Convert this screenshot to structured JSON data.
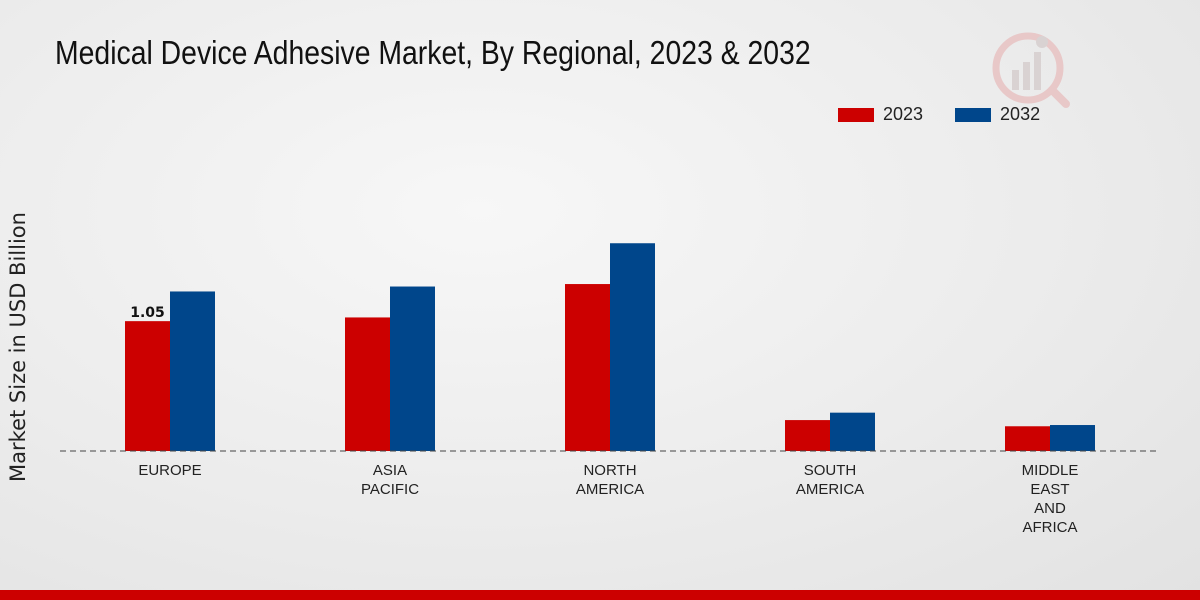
{
  "chart_data": {
    "type": "bar",
    "title": "Medical Device Adhesive Market, By Regional, 2023 & 2032",
    "xlabel": "",
    "ylabel": "Market Size in USD Billion",
    "categories": [
      "EUROPE",
      "ASIA\nPACIFIC",
      "NORTH\nAMERICA",
      "SOUTH\nAMERICA",
      "MIDDLE\nEAST\nAND\nAFRICA"
    ],
    "series": [
      {
        "name": "2023",
        "color": "#cc0000",
        "values": [
          1.05,
          1.08,
          1.35,
          0.25,
          0.2
        ]
      },
      {
        "name": "2032",
        "color": "#00468b",
        "values": [
          1.29,
          1.33,
          1.68,
          0.31,
          0.21
        ]
      }
    ],
    "data_labels": [
      {
        "series": "2023",
        "category_index": 0,
        "text": "1.05"
      }
    ],
    "ylim": [
      0,
      3.0
    ],
    "grid": false
  }
}
